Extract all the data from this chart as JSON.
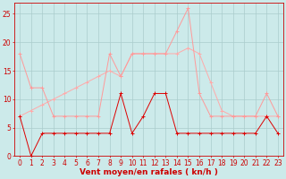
{
  "x": [
    0,
    1,
    2,
    3,
    4,
    5,
    6,
    7,
    8,
    9,
    10,
    11,
    12,
    13,
    14,
    15,
    16,
    17,
    18,
    19,
    20,
    21,
    22,
    23
  ],
  "wind_avg": [
    7,
    0,
    4,
    4,
    4,
    4,
    4,
    4,
    4,
    11,
    4,
    7,
    11,
    11,
    4,
    4,
    4,
    4,
    4,
    4,
    4,
    4,
    7,
    4
  ],
  "wind_gust": [
    18,
    12,
    12,
    7,
    7,
    7,
    7,
    7,
    18,
    14,
    18,
    18,
    18,
    18,
    22,
    26,
    11,
    7,
    7,
    7,
    7,
    7,
    11,
    7
  ],
  "wind_trend": [
    7,
    8,
    9,
    10,
    11,
    12,
    13,
    14,
    15,
    14,
    18,
    18,
    18,
    18,
    18,
    19,
    18,
    13,
    8,
    7,
    7,
    7,
    7,
    7
  ],
  "bg_color": "#cceaea",
  "grid_color": "#aacccc",
  "line_avg_color": "#dd0000",
  "line_gust_color": "#ff9999",
  "line_trend_color": "#ffaaaa",
  "xlabel": "Vent moyen/en rafales ( kn/h )",
  "ylim": [
    0,
    27
  ],
  "xlim": [
    -0.5,
    23.5
  ],
  "yticks": [
    0,
    5,
    10,
    15,
    20,
    25
  ],
  "xticks": [
    0,
    1,
    2,
    3,
    4,
    5,
    6,
    7,
    8,
    9,
    10,
    11,
    12,
    13,
    14,
    15,
    16,
    17,
    18,
    19,
    20,
    21,
    22,
    23
  ],
  "tick_fontsize": 5.5,
  "xlabel_fontsize": 6.5,
  "figsize": [
    3.2,
    2.0
  ],
  "dpi": 100
}
